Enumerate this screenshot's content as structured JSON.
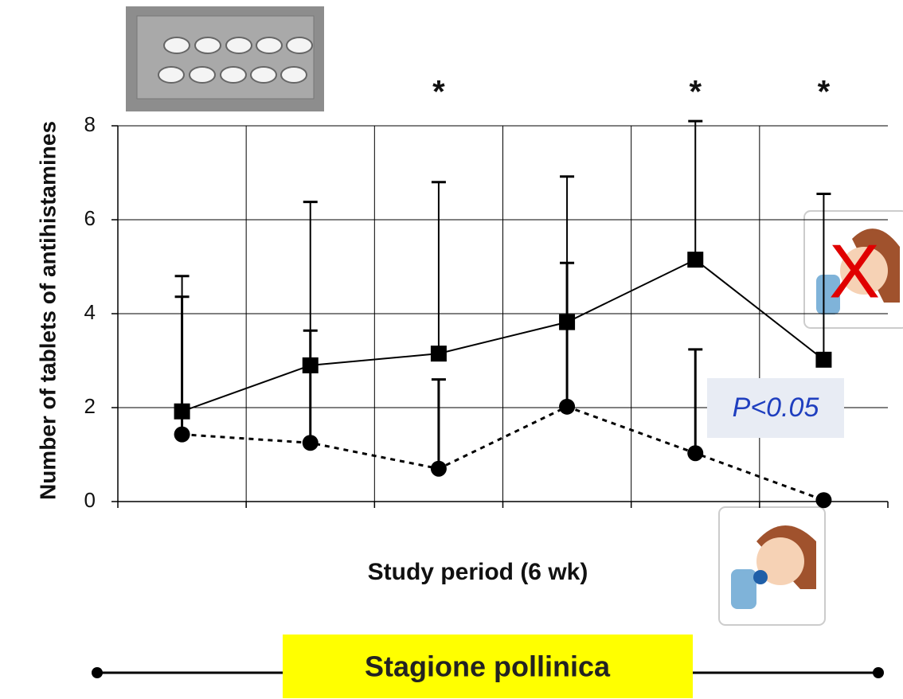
{
  "chart_data": {
    "type": "line",
    "y_label": "Number of tablets of antihistamines",
    "x_label": "Study period (6 wk)",
    "categories": [
      null,
      null,
      null,
      null,
      null,
      null
    ],
    "series": [
      {
        "color": "#000000",
        "marker": "square",
        "dash": "solid",
        "values": [
          1.92,
          2.9,
          3.15,
          3.82,
          5.15,
          3.02
        ],
        "errors": [
          2.88,
          3.48,
          3.65,
          3.1,
          2.95,
          3.53
        ]
      },
      {
        "color": "#000000",
        "marker": "circle",
        "dash": "dotted",
        "values": [
          1.43,
          1.25,
          0.7,
          2.02,
          1.03,
          0.03
        ],
        "errors": [
          2.93,
          2.39,
          1.9,
          3.06,
          2.21,
          null
        ]
      }
    ],
    "significance": [
      null,
      null,
      "*",
      null,
      "*",
      "*"
    ],
    "ylim": [
      0,
      8
    ],
    "yticks": [
      0,
      2,
      4,
      6,
      8
    ],
    "grid": true,
    "annotations": {
      "p_value": "P<0.05",
      "cross": "X",
      "period": "Stagione pollinica"
    }
  }
}
